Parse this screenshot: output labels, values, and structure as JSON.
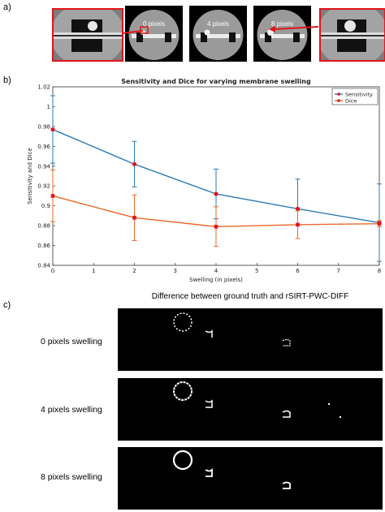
{
  "panel_labels": {
    "a": "a)",
    "b": "b)",
    "c": "c)"
  },
  "thumbnails": [
    {
      "label": "0 pixels"
    },
    {
      "label": "4 pixels"
    },
    {
      "label": "8 pixels"
    }
  ],
  "colors": {
    "sensitivity": "#2c7bb6",
    "dice": "#e8692a",
    "highlight": "#e0151b"
  },
  "chart_data": {
    "type": "line",
    "title": "Sensitivity and Dice for varying membrane swelling",
    "xlabel": "Swelling (in pixels)",
    "ylabel": "Sensitivity and Dice",
    "xlim": [
      0,
      8
    ],
    "ylim": [
      0.84,
      1.02
    ],
    "x_ticks": [
      "0",
      "1",
      "2",
      "3",
      "4",
      "5",
      "6",
      "7",
      "8"
    ],
    "y_ticks": [
      "0.84",
      "0.86",
      "0.88",
      "0.9",
      "0.92",
      "0.94",
      "0.96",
      "0.98",
      "1",
      "1.02"
    ],
    "legend_position": "top-right",
    "series": [
      {
        "name": "Sensitivity",
        "x": [
          0,
          2,
          4,
          6,
          8
        ],
        "y": [
          0.977,
          0.942,
          0.912,
          0.897,
          0.883
        ],
        "err": [
          0.034,
          0.023,
          0.025,
          0.03,
          0.039
        ]
      },
      {
        "name": "Dice",
        "x": [
          0,
          2,
          4,
          6,
          8
        ],
        "y": [
          0.91,
          0.888,
          0.879,
          0.881,
          0.882
        ],
        "err": [
          0.026,
          0.023,
          0.02,
          0.014,
          0.003
        ]
      }
    ]
  },
  "diff": {
    "title": "Difference between ground truth and rSIRT-PWC-DIFF",
    "rows": [
      {
        "label": "0 pixels swelling"
      },
      {
        "label": "4 pixels swelling"
      },
      {
        "label": "8 pixels swelling"
      }
    ]
  }
}
